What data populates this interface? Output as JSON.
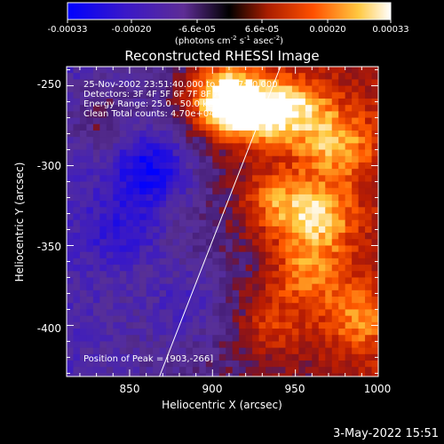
{
  "chart_data": {
    "type": "heatmap",
    "title": "Reconstructed RHESSI Image",
    "xlabel": "Heliocentric X (arcsec)",
    "ylabel": "Heliocentric Y (arcsec)",
    "xlim": [
      812,
      1000
    ],
    "ylim": [
      -432,
      -238
    ],
    "xticks": [
      850,
      900,
      950,
      1000
    ],
    "yticks": [
      -250,
      -300,
      -350,
      -400
    ],
    "colorbar": {
      "ticks": [
        "-0.00033",
        "-0.00020",
        "-6.6e-05",
        "6.6e-05",
        "0.00020",
        "0.00033"
      ],
      "label_prefix": "(photons cm",
      "label_sup1": "-2",
      "label_mid": " s",
      "label_sup2": "-1",
      "label_mid2": " asec",
      "label_sup3": "-2",
      "label_suffix": ")",
      "range": [
        -0.00033,
        0.00033
      ]
    },
    "annotations": [
      "25-Nov-2002 23:51:40.000 to 23:57:40.000",
      "Detectors: 3F 4F 5F 6F 7F 8F  Att 0",
      "Energy Range: 25.0 - 50.0 keV",
      "Clean     Total counts: 4.70e+04"
    ],
    "peak_label": "Position of Peak = [903,-266]",
    "peak": [
      903,
      -266
    ],
    "limb_line": [
      [
        868,
        -432
      ],
      [
        941,
        -238
      ]
    ],
    "hotspots": [
      {
        "x": 903,
        "y": -255,
        "value": 0.00033
      },
      {
        "x": 922,
        "y": -265,
        "value": 0.00025
      },
      {
        "x": 948,
        "y": -262,
        "value": 0.00022
      },
      {
        "x": 973,
        "y": -285,
        "value": 0.0002
      },
      {
        "x": 962,
        "y": -330,
        "value": 0.00022
      },
      {
        "x": 935,
        "y": -320,
        "value": 0.00018
      },
      {
        "x": 955,
        "y": -365,
        "value": 0.00017
      },
      {
        "x": 985,
        "y": -395,
        "value": 0.00015
      },
      {
        "x": 932,
        "y": -398,
        "value": 0.00012
      },
      {
        "x": 830,
        "y": -270,
        "value": 0.0001
      },
      {
        "x": 860,
        "y": -300,
        "value": -0.00022
      },
      {
        "x": 845,
        "y": -340,
        "value": -0.00012
      },
      {
        "x": 885,
        "y": -385,
        "value": -0.0001
      }
    ]
  },
  "footer": {
    "timestamp": "3-May-2022 15:51"
  }
}
